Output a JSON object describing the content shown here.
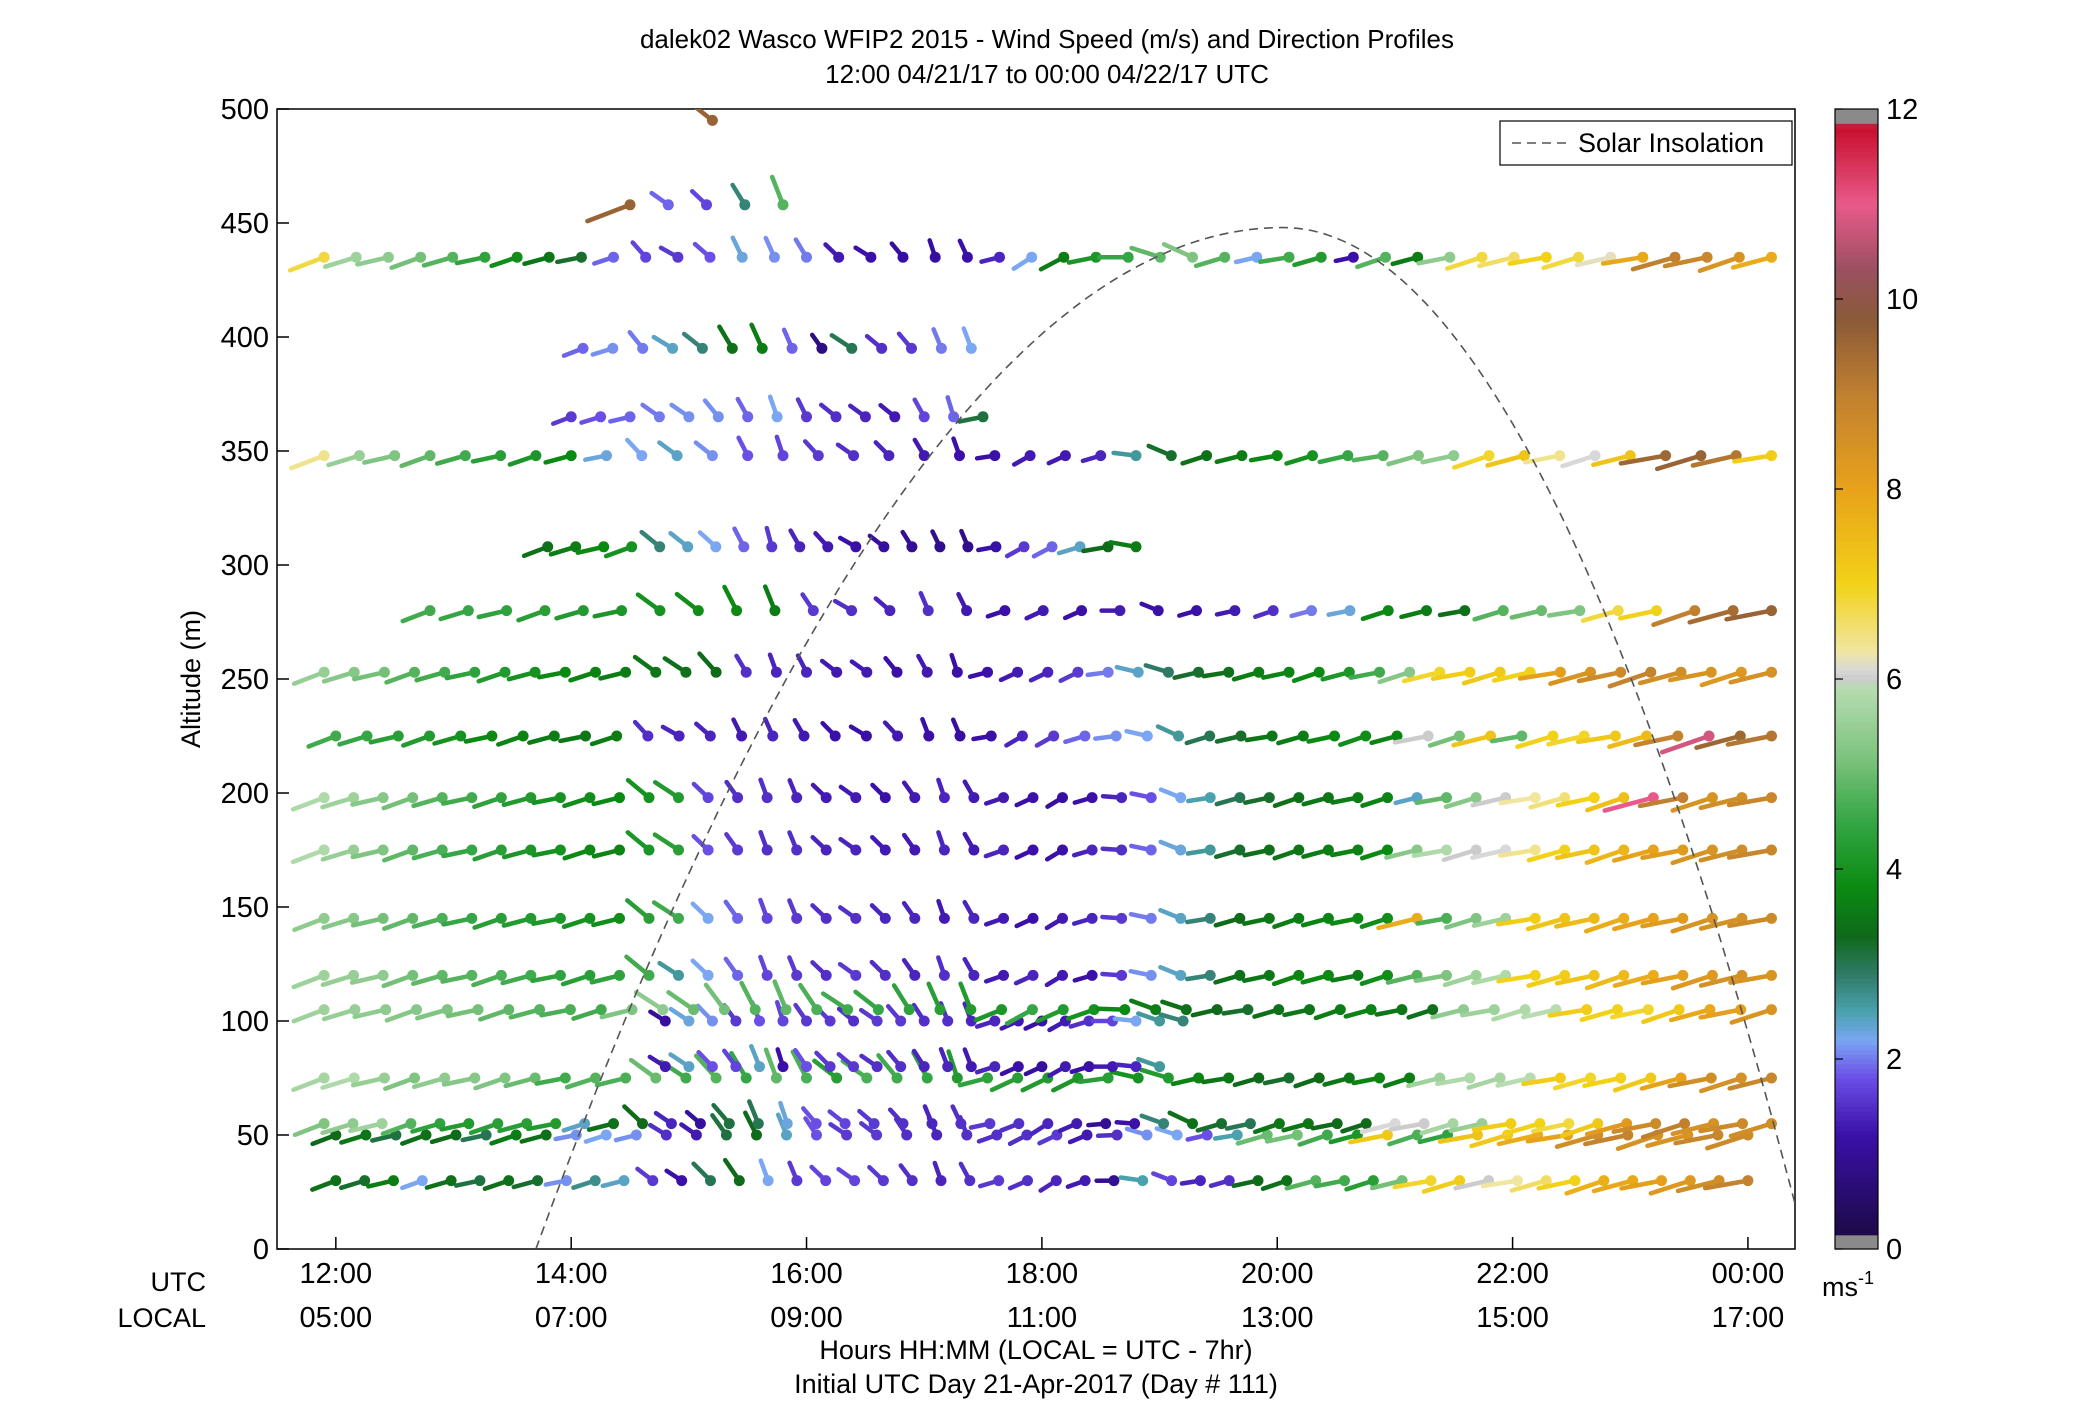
{
  "chart_data": {
    "type": "scatter",
    "title": "dalek02 Wasco WFIP2 2015 - Wind Speed (m/s) and Direction Profiles",
    "subtitle": "12:00 04/21/17 to 00:00 04/22/17  UTC",
    "ylabel": "Altitude (m)",
    "xlabel": "Hours HH:MM  (LOCAL = UTC - 7hr)",
    "xlabel2": "Initial UTC Day 21-Apr-2017 (Day # 111)",
    "x_row_label_utc": "UTC",
    "x_row_label_local": "LOCAL",
    "xlim": [
      11.5,
      24.4
    ],
    "ylim": [
      0,
      500
    ],
    "yticks": [
      {
        "value": 0,
        "label": "0"
      },
      {
        "value": 50,
        "label": "50"
      },
      {
        "value": 100,
        "label": "100"
      },
      {
        "value": 150,
        "label": "150"
      },
      {
        "value": 200,
        "label": "200"
      },
      {
        "value": 250,
        "label": "250"
      },
      {
        "value": 300,
        "label": "300"
      },
      {
        "value": 350,
        "label": "350"
      },
      {
        "value": 400,
        "label": "400"
      },
      {
        "value": 450,
        "label": "450"
      },
      {
        "value": 500,
        "label": "500"
      }
    ],
    "xticks": [
      {
        "value": 12,
        "utc": "12:00",
        "local": "05:00"
      },
      {
        "value": 14,
        "utc": "14:00",
        "local": "07:00"
      },
      {
        "value": 16,
        "utc": "16:00",
        "local": "09:00"
      },
      {
        "value": 18,
        "utc": "18:00",
        "local": "11:00"
      },
      {
        "value": 20,
        "utc": "20:00",
        "local": "13:00"
      },
      {
        "value": 22,
        "utc": "22:00",
        "local": "15:00"
      },
      {
        "value": 24,
        "utc": "00:00",
        "local": "17:00"
      }
    ],
    "legend": {
      "position": "top-right",
      "entries": [
        {
          "label": "Solar Insolation",
          "style": "dashed",
          "color": "#555555"
        }
      ]
    },
    "solar_insolation": {
      "peak_time": 20.05,
      "peak_altitude": 448,
      "zero_times": [
        13.7,
        24.5
      ]
    },
    "colorbar": {
      "label": "ms",
      "label_sup": "-1",
      "range": [
        0,
        12
      ],
      "ticks": [
        {
          "value": 0,
          "label": "0"
        },
        {
          "value": 2,
          "label": "2"
        },
        {
          "value": 4,
          "label": "4"
        },
        {
          "value": 6,
          "label": "6"
        },
        {
          "value": 8,
          "label": "8"
        },
        {
          "value": 10,
          "label": "10"
        },
        {
          "value": 12,
          "label": "12"
        }
      ],
      "stops": [
        {
          "v": 0,
          "color": "#888888"
        },
        {
          "v": 0.15,
          "color": "#1c0a48"
        },
        {
          "v": 1.2,
          "color": "#3a10a8"
        },
        {
          "v": 1.8,
          "color": "#6a4ee6"
        },
        {
          "v": 2.2,
          "color": "#7aa6f2"
        },
        {
          "v": 2.5,
          "color": "#4aa2ae"
        },
        {
          "v": 2.9,
          "color": "#2f7a66"
        },
        {
          "v": 3.3,
          "color": "#0f6a1a"
        },
        {
          "v": 3.8,
          "color": "#0a8a12"
        },
        {
          "v": 4.5,
          "color": "#35a645"
        },
        {
          "v": 5.2,
          "color": "#7fc480"
        },
        {
          "v": 5.9,
          "color": "#b6dcb0"
        },
        {
          "v": 6.0,
          "color": "#cccccc"
        },
        {
          "v": 6.1,
          "color": "#d8d8d8"
        },
        {
          "v": 6.3,
          "color": "#f0e6a0"
        },
        {
          "v": 7.0,
          "color": "#f2d218"
        },
        {
          "v": 8.0,
          "color": "#e8a21a"
        },
        {
          "v": 9.0,
          "color": "#c08030"
        },
        {
          "v": 9.8,
          "color": "#8a5a38"
        },
        {
          "v": 10.3,
          "color": "#9a5060"
        },
        {
          "v": 11.0,
          "color": "#e85a8a"
        },
        {
          "v": 11.8,
          "color": "#c8102e"
        },
        {
          "v": 12,
          "color": "#888888"
        }
      ]
    },
    "levels": [
      {
        "alt": 30,
        "t0": 12.0,
        "t1": 24.0,
        "speeds": [
          3.4,
          3.2,
          3.6,
          2.2,
          3.4,
          3.1,
          3.4,
          3.2,
          2.1,
          2.7,
          2.4,
          1.6,
          1.2,
          3.0,
          3.3,
          2.2,
          1.6,
          1.7,
          1.7,
          1.6,
          1.5,
          1.4,
          1.5,
          1.6,
          1.5,
          1.4,
          1.3,
          1.0,
          2.5,
          1.7,
          1.4,
          1.5,
          3.3,
          3.4,
          4.8,
          4.6,
          4.3,
          5.1,
          6.9,
          7.1,
          6.0,
          6.3,
          6.6,
          7.0,
          7.7,
          7.9,
          8.1,
          8.3,
          8.6,
          8.9
        ]
      },
      {
        "alt": 50,
        "t0": 12.0,
        "t1": 24.0,
        "speeds": [
          3.3,
          3.5,
          3.1,
          3.4,
          3.3,
          3.0,
          3.6,
          3.4,
          2.1,
          2.2,
          2.1,
          1.5,
          1.3,
          3.1,
          3.3,
          2.4,
          1.8,
          1.6,
          1.6,
          1.5,
          1.4,
          1.5,
          1.5,
          1.5,
          1.6,
          1.3,
          1.5,
          2.1,
          2.2,
          1.8,
          2.5,
          5.0,
          5.1,
          4.6,
          4.1,
          7.2,
          4.7,
          4.4,
          7.3,
          7.2,
          7.8,
          8.0,
          8.6,
          8.9,
          8.5,
          8.4,
          8.8,
          8.7
        ]
      },
      {
        "alt": 55,
        "t0": 11.9,
        "t1": 24.2,
        "speeds": [
          5.2,
          5.4,
          5.6,
          4.8,
          4.4,
          4.2,
          4.3,
          4.3,
          4.2,
          2.4,
          3.4,
          3.3,
          1.4,
          1.1,
          3.1,
          3.0,
          2.3,
          1.8,
          1.7,
          1.6,
          1.5,
          1.4,
          1.5,
          1.6,
          1.5,
          1.4,
          1.3,
          1.0,
          1.2,
          2.8,
          3.4,
          3.2,
          3.0,
          3.5,
          3.5,
          3.3,
          3.3,
          6.1,
          6.0,
          5.7,
          5.5,
          7.1,
          7.0,
          6.8,
          7.2,
          8.2,
          8.7,
          9.0,
          8.5,
          8.7,
          8.6
        ]
      },
      {
        "alt": 75,
        "t0": 11.9,
        "t1": 24.2,
        "speeds": [
          5.7,
          5.8,
          5.5,
          5.2,
          5.4,
          5.3,
          5.2,
          5.0,
          4.6,
          4.8,
          4.7,
          5.0,
          4.6,
          4.8,
          4.5,
          4.9,
          4.7,
          4.3,
          4.7,
          4.6,
          4.5,
          4.2,
          4.4,
          4.3,
          4.2,
          4.1,
          4.3,
          4.0,
          4.2,
          3.7,
          3.5,
          3.3,
          3.2,
          3.3,
          3.5,
          3.7,
          3.6,
          5.6,
          5.8,
          5.7,
          5.9,
          7.1,
          6.9,
          7.0,
          7.2,
          8.0,
          8.6,
          8.5,
          8.8
        ]
      },
      {
        "alt": 80,
        "t0": 14.8,
        "t1": 19.0,
        "speeds": [
          1.3,
          2.4,
          1.8,
          1.7,
          2.4,
          1.2,
          1.8,
          1.6,
          1.6,
          1.5,
          1.5,
          1.4,
          1.4,
          1.3,
          1.4,
          1.2,
          1.1,
          1.3,
          1.2,
          1.3,
          1.4,
          2.6
        ]
      },
      {
        "alt": 100,
        "t0": 14.8,
        "t1": 19.2,
        "speeds": [
          1.1,
          2.3,
          2.1,
          1.6,
          1.8,
          1.7,
          1.6,
          1.6,
          1.5,
          1.6,
          1.6,
          1.5,
          1.5,
          1.4,
          1.4,
          1.3,
          1.2,
          1.3,
          1.5,
          1.7,
          2.2,
          2.6,
          2.8
        ]
      },
      {
        "alt": 105,
        "t0": 11.9,
        "t1": 24.2,
        "speeds": [
          5.6,
          5.5,
          5.4,
          5.3,
          5.2,
          5.1,
          4.9,
          4.8,
          4.7,
          4.6,
          5.2,
          5.4,
          5.0,
          5.1,
          4.8,
          4.9,
          4.7,
          4.6,
          4.5,
          4.4,
          4.3,
          4.2,
          4.1,
          4.5,
          4.2,
          4.0,
          3.8,
          3.6,
          3.4,
          3.3,
          3.2,
          3.4,
          3.5,
          3.6,
          3.7,
          3.5,
          3.4,
          5.4,
          5.6,
          5.8,
          5.9,
          7.1,
          7.0,
          6.9,
          7.2,
          7.9,
          8.1,
          8.4
        ]
      },
      {
        "alt": 120,
        "t0": 11.9,
        "t1": 24.2,
        "speeds": [
          5.6,
          5.5,
          5.4,
          5.1,
          4.9,
          4.8,
          4.7,
          4.6,
          4.4,
          4.3,
          4.4,
          4.6,
          2.6,
          2.2,
          1.9,
          1.7,
          1.6,
          1.5,
          1.6,
          1.5,
          1.4,
          1.5,
          1.4,
          1.3,
          1.4,
          1.3,
          1.2,
          1.6,
          2.1,
          2.4,
          2.8,
          3.4,
          3.5,
          3.7,
          3.8,
          3.6,
          3.9,
          4.8,
          5.2,
          5.6,
          5.8,
          7.0,
          7.1,
          7.3,
          7.5,
          7.8,
          8.1,
          8.3,
          8.5,
          8.4
        ]
      },
      {
        "alt": 145,
        "t0": 11.9,
        "t1": 24.2,
        "speeds": [
          5.4,
          5.3,
          5.1,
          4.9,
          4.7,
          4.5,
          4.3,
          4.2,
          4.1,
          4.0,
          3.9,
          4.3,
          4.6,
          2.2,
          1.9,
          1.7,
          1.6,
          1.5,
          1.5,
          1.4,
          1.4,
          1.3,
          1.4,
          1.3,
          1.2,
          1.3,
          1.4,
          1.6,
          2.0,
          2.4,
          2.8,
          3.3,
          3.5,
          3.6,
          3.7,
          3.8,
          3.9,
          7.8,
          4.7,
          5.2,
          5.6,
          7.1,
          7.3,
          7.5,
          7.8,
          8.0,
          8.2,
          8.4,
          8.5,
          8.7
        ]
      },
      {
        "alt": 175,
        "t0": 11.9,
        "t1": 24.2,
        "speeds": [
          5.8,
          5.5,
          5.2,
          4.9,
          4.7,
          4.5,
          4.3,
          4.1,
          4.0,
          3.8,
          3.7,
          4.1,
          4.3,
          1.8,
          1.6,
          1.5,
          1.5,
          1.4,
          1.4,
          1.3,
          1.3,
          1.4,
          1.3,
          1.4,
          1.2,
          1.2,
          1.4,
          1.5,
          1.9,
          2.3,
          2.6,
          3.2,
          3.4,
          3.5,
          3.6,
          3.7,
          3.8,
          5.3,
          5.8,
          6.0,
          6.1,
          6.4,
          7.0,
          7.3,
          7.6,
          8.0,
          8.2,
          8.4,
          8.6,
          8.8
        ]
      },
      {
        "alt": 198,
        "t0": 11.9,
        "t1": 24.2,
        "speeds": [
          5.8,
          5.6,
          5.3,
          5.1,
          4.8,
          4.6,
          4.4,
          4.2,
          4.0,
          3.9,
          3.8,
          4.0,
          4.2,
          1.7,
          1.5,
          1.5,
          1.4,
          1.3,
          1.3,
          1.2,
          1.3,
          1.4,
          1.3,
          1.3,
          1.2,
          1.1,
          1.2,
          1.4,
          1.8,
          2.2,
          2.5,
          3.0,
          3.2,
          3.4,
          3.5,
          3.6,
          3.7,
          2.4,
          4.9,
          5.3,
          6.0,
          6.3,
          6.5,
          7.0,
          7.4,
          11.0,
          9.0,
          8.4,
          8.6,
          8.8
        ]
      },
      {
        "alt": 225,
        "t0": 12.0,
        "t1": 24.2,
        "speeds": [
          4.6,
          4.5,
          4.3,
          4.2,
          4.0,
          3.8,
          3.7,
          3.6,
          3.5,
          3.6,
          1.5,
          1.4,
          1.4,
          1.3,
          1.4,
          1.3,
          1.2,
          1.2,
          1.3,
          1.2,
          1.1,
          1.2,
          1.4,
          1.6,
          1.9,
          2.1,
          2.2,
          2.6,
          3.0,
          3.2,
          3.5,
          3.6,
          3.8,
          3.9,
          3.7,
          6.0,
          5.1,
          7.3,
          4.9,
          7.0,
          6.9,
          7.2,
          7.5,
          8.9,
          10.8,
          9.5,
          9.2
        ]
      },
      {
        "alt": 253,
        "t0": 11.9,
        "t1": 24.2,
        "speeds": [
          5.5,
          5.3,
          5.1,
          4.8,
          4.6,
          4.4,
          4.2,
          4.0,
          3.8,
          3.7,
          3.6,
          3.5,
          3.4,
          3.3,
          1.5,
          1.4,
          1.4,
          1.3,
          1.3,
          1.2,
          1.3,
          1.2,
          1.2,
          1.3,
          1.4,
          1.6,
          2.0,
          2.4,
          2.9,
          3.2,
          3.4,
          3.6,
          3.7,
          3.8,
          4.1,
          4.6,
          5.3,
          6.9,
          7.1,
          7.2,
          7.0,
          8.1,
          8.4,
          8.7,
          8.9,
          8.6,
          8.4,
          8.3,
          8.5
        ]
      },
      {
        "alt": 280,
        "t0": 12.8,
        "t1": 24.2,
        "speeds": [
          4.6,
          4.5,
          4.4,
          4.3,
          4.2,
          4.1,
          4.0,
          3.9,
          3.8,
          3.6,
          1.6,
          1.5,
          1.4,
          1.5,
          1.3,
          1.2,
          1.3,
          1.2,
          1.3,
          1.2,
          1.2,
          1.3,
          1.5,
          2.0,
          2.3,
          3.8,
          3.6,
          3.4,
          4.8,
          5.0,
          5.2,
          6.8,
          7.0,
          9.0,
          9.4,
          9.6
        ]
      },
      {
        "alt": 308,
        "t0": 13.8,
        "t1": 18.8,
        "speeds": [
          3.4,
          3.6,
          3.8,
          4.0,
          2.8,
          2.4,
          2.2,
          1.9,
          1.6,
          1.4,
          1.3,
          1.2,
          1.1,
          1.0,
          0.9,
          0.9,
          1.2,
          1.6,
          1.9,
          2.4,
          3.3,
          3.6
        ]
      },
      {
        "alt": 348,
        "t0": 11.9,
        "t1": 24.2,
        "speeds": [
          6.4,
          5.5,
          5.2,
          4.9,
          4.6,
          4.3,
          4.1,
          3.8,
          2.3,
          2.2,
          2.4,
          2.1,
          1.8,
          1.7,
          1.6,
          1.5,
          1.4,
          1.3,
          1.2,
          1.2,
          1.3,
          1.3,
          1.4,
          2.6,
          3.2,
          3.4,
          3.6,
          3.8,
          4.0,
          4.5,
          4.8,
          5.2,
          5.4,
          6.9,
          7.3,
          6.4,
          6.1,
          7.3,
          9.5,
          9.6,
          9.2,
          7.1
        ]
      },
      {
        "alt": 365,
        "t0": 14.0,
        "t1": 17.5,
        "speeds": [
          1.6,
          1.8,
          1.9,
          2.0,
          2.1,
          2.1,
          1.9,
          2.2,
          1.6,
          1.5,
          1.4,
          1.3,
          1.7,
          1.9,
          3.1
        ]
      },
      {
        "alt": 395,
        "t0": 14.1,
        "t1": 17.4,
        "speeds": [
          1.9,
          2.1,
          2.0,
          2.4,
          2.8,
          3.4,
          3.6,
          1.9,
          0.8,
          3.0,
          1.5,
          1.6,
          2.0,
          2.2
        ]
      },
      {
        "alt": 435,
        "t0": 11.9,
        "t1": 24.2,
        "speeds": [
          6.8,
          5.6,
          5.4,
          5.1,
          4.8,
          4.4,
          3.9,
          3.5,
          3.2,
          1.9,
          1.7,
          1.6,
          1.8,
          2.3,
          2.1,
          2.0,
          1.3,
          1.2,
          1.1,
          1.1,
          1.2,
          1.4,
          2.2,
          3.6,
          4.1,
          4.5,
          4.9,
          5.2,
          4.8,
          2.2,
          4.6,
          4.2,
          1.2,
          4.8,
          3.6,
          5.4,
          6.8,
          6.6,
          7.0,
          6.8,
          6.2,
          7.9,
          9.0,
          8.8,
          8.4,
          7.8
        ]
      },
      {
        "alt": 458,
        "t0": 14.5,
        "t1": 15.8,
        "speeds": [
          9.6,
          1.9,
          1.7,
          2.8,
          4.8
        ]
      },
      {
        "alt": 495,
        "t0": 15.2,
        "t1": 15.2,
        "speeds": [
          9.6
        ]
      }
    ]
  }
}
